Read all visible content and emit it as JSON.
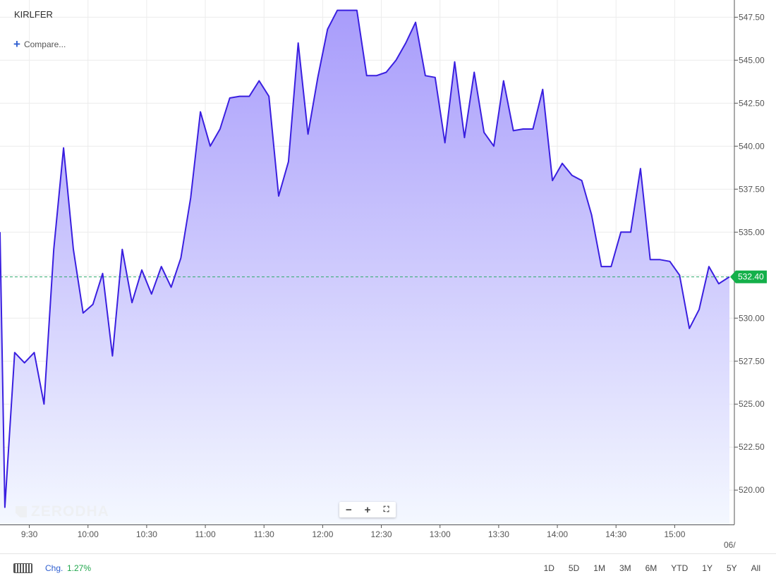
{
  "header": {
    "symbol": "KIRLFER",
    "compare_label": "Compare..."
  },
  "watermark": "ZERODHA",
  "zoom_controls": {
    "minus": "−",
    "plus": "+",
    "fullscreen": "⛶"
  },
  "footer": {
    "change_label": "Chg.",
    "change_value": "1.27%",
    "ranges": [
      "1D",
      "5D",
      "1M",
      "3M",
      "6M",
      "YTD",
      "1Y",
      "5Y",
      "All"
    ]
  },
  "colors": {
    "line": "#3a1fe0",
    "fill_top": "#a89cfb",
    "fill_bottom": "#f4f8ff",
    "last_price_tag": "#14b04a",
    "last_price_line": "#2aa86a"
  },
  "chart_data": {
    "type": "area",
    "title": "KIRLFER",
    "x_ticks": [
      "9:30",
      "10:00",
      "10:30",
      "11:00",
      "11:30",
      "12:00",
      "12:30",
      "13:00",
      "13:30",
      "14:00",
      "14:30",
      "15:00"
    ],
    "x_extra_label": "06/",
    "y_ticks": [
      "547.50",
      "545.00",
      "542.50",
      "540.00",
      "537.50",
      "535.00",
      "532.50",
      "530.00",
      "527.50",
      "525.00",
      "522.50",
      "520.00"
    ],
    "ylim": [
      518.0,
      548.5
    ],
    "x_range_minutes": [
      555,
      928
    ],
    "last_price": 532.4,
    "last_price_label": "532.40",
    "grid": true,
    "series": [
      {
        "points": [
          [
            555,
            535.0
          ],
          [
            557.5,
            519.0
          ],
          [
            562.5,
            528.0
          ],
          [
            567.5,
            527.4
          ],
          [
            572.5,
            528.0
          ],
          [
            577.5,
            525.0
          ],
          [
            582.5,
            534.0
          ],
          [
            587.5,
            539.9
          ],
          [
            592.5,
            534.0
          ],
          [
            597.5,
            530.3
          ],
          [
            602.5,
            530.8
          ],
          [
            607.5,
            532.6
          ],
          [
            612.5,
            527.8
          ],
          [
            617.5,
            534.0
          ],
          [
            622.5,
            530.9
          ],
          [
            627.5,
            532.8
          ],
          [
            632.5,
            531.4
          ],
          [
            637.5,
            533.0
          ],
          [
            642.5,
            531.8
          ],
          [
            647.5,
            533.5
          ],
          [
            652.5,
            537.0
          ],
          [
            657.5,
            542.0
          ],
          [
            662.5,
            540.0
          ],
          [
            667.5,
            541.0
          ],
          [
            672.5,
            542.8
          ],
          [
            677.5,
            542.9
          ],
          [
            682.5,
            542.9
          ],
          [
            687.5,
            543.8
          ],
          [
            692.5,
            542.9
          ],
          [
            697.5,
            537.1
          ],
          [
            702.5,
            539.1
          ],
          [
            707.5,
            546.0
          ],
          [
            712.5,
            540.7
          ],
          [
            717.5,
            544.0
          ],
          [
            722.5,
            546.8
          ],
          [
            727.5,
            547.9
          ],
          [
            732.5,
            547.9
          ],
          [
            737.5,
            547.9
          ],
          [
            742.5,
            544.1
          ],
          [
            747.5,
            544.1
          ],
          [
            752.5,
            544.3
          ],
          [
            757.5,
            545.0
          ],
          [
            762.5,
            546.0
          ],
          [
            767.5,
            547.2
          ],
          [
            772.5,
            544.1
          ],
          [
            777.5,
            544.0
          ],
          [
            782.5,
            540.2
          ],
          [
            787.5,
            544.9
          ],
          [
            792.5,
            540.5
          ],
          [
            797.5,
            544.3
          ],
          [
            802.5,
            540.8
          ],
          [
            807.5,
            540.0
          ],
          [
            812.5,
            543.8
          ],
          [
            817.5,
            540.9
          ],
          [
            822.5,
            541.0
          ],
          [
            827.5,
            541.0
          ],
          [
            832.5,
            543.3
          ],
          [
            837.5,
            538.0
          ],
          [
            842.5,
            539.0
          ],
          [
            847.5,
            538.3
          ],
          [
            852.5,
            538.0
          ],
          [
            857.5,
            536.0
          ],
          [
            862.5,
            533.0
          ],
          [
            867.5,
            533.0
          ],
          [
            872.5,
            535.0
          ],
          [
            877.5,
            535.0
          ],
          [
            882.5,
            538.7
          ],
          [
            887.5,
            533.4
          ],
          [
            892.5,
            533.4
          ],
          [
            897.5,
            533.3
          ],
          [
            902.5,
            532.5
          ],
          [
            907.5,
            529.4
          ],
          [
            912.5,
            530.5
          ],
          [
            917.5,
            533.0
          ],
          [
            922.5,
            532.0
          ],
          [
            928,
            532.4
          ]
        ]
      }
    ]
  }
}
